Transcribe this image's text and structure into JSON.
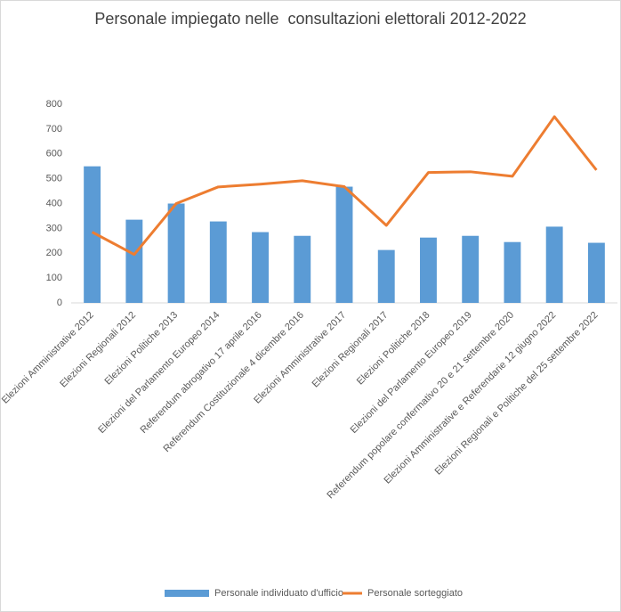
{
  "chart_data": {
    "type": "combo",
    "title": "Personale impiegato nelle  consultazioni elettorali 2012-2022",
    "categories": [
      "Elezioni Amministrative 2012",
      "Elezioni Regionali 2012",
      "Elezioni Politiche 2013",
      "Elezioni del Parlamento Europeo 2014",
      "Referendum abrogativo 17 aprile 2016",
      "Referendum Costituzionale 4 dicembre 2016",
      "Elezioni Amministrative 2017",
      "Elezioni Regionali 2017",
      "Elezioni Politiche 2018",
      "Elezioni del Parlamento Europeo 2019",
      "Referendum popolare confermativo 20 e 21 settembre 2020",
      "Elezioni Amministrative e Referendarie 12 giugno 2022",
      "Elezioni Regionali e Politiche del 25 settembre 2022"
    ],
    "series": [
      {
        "name": "Personale individuato d'ufficio",
        "type": "bar",
        "color": "#5b9bd5",
        "values": [
          550,
          335,
          400,
          328,
          285,
          270,
          468,
          213,
          263,
          270,
          245,
          307,
          242
        ]
      },
      {
        "name": "Personale sorteggiato",
        "type": "line",
        "color": "#ed7d31",
        "values": [
          285,
          195,
          400,
          467,
          478,
          492,
          468,
          312,
          525,
          528,
          510,
          750,
          535
        ]
      }
    ],
    "ylim": [
      0,
      800
    ],
    "yticks": [
      0,
      100,
      200,
      300,
      400,
      500,
      600,
      700,
      800
    ],
    "grid": false,
    "legend": "bottom"
  }
}
